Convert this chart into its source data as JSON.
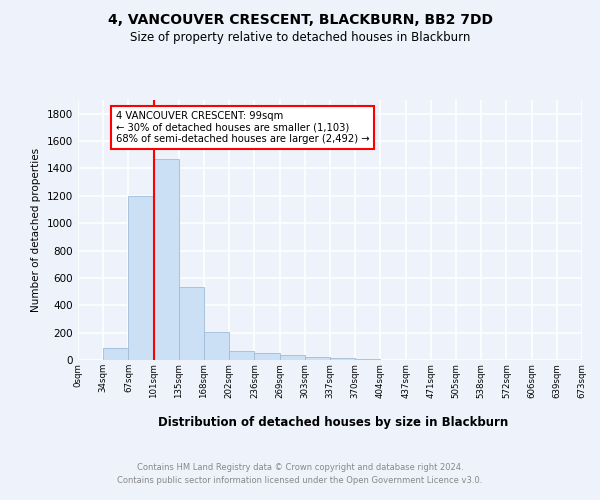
{
  "title": "4, VANCOUVER CRESCENT, BLACKBURN, BB2 7DD",
  "subtitle": "Size of property relative to detached houses in Blackburn",
  "xlabel": "Distribution of detached houses by size in Blackburn",
  "ylabel": "Number of detached properties",
  "bin_labels": [
    "0sqm",
    "34sqm",
    "67sqm",
    "101sqm",
    "135sqm",
    "168sqm",
    "202sqm",
    "236sqm",
    "269sqm",
    "303sqm",
    "337sqm",
    "370sqm",
    "404sqm",
    "437sqm",
    "471sqm",
    "505sqm",
    "538sqm",
    "572sqm",
    "606sqm",
    "639sqm",
    "673sqm"
  ],
  "bar_heights": [
    0,
    90,
    1200,
    1470,
    530,
    205,
    65,
    50,
    35,
    22,
    13,
    8,
    0,
    0,
    0,
    0,
    0,
    0,
    0,
    0
  ],
  "bar_color": "#cce0f5",
  "bar_edge_color": "#a0bcd8",
  "vline_color": "red",
  "vline_x": 3.0,
  "annotation_text": "4 VANCOUVER CRESCENT: 99sqm\n← 30% of detached houses are smaller (1,103)\n68% of semi-detached houses are larger (2,492) →",
  "annotation_box_color": "white",
  "annotation_box_edge_color": "red",
  "ylim": [
    0,
    1900
  ],
  "yticks": [
    0,
    200,
    400,
    600,
    800,
    1000,
    1200,
    1400,
    1600,
    1800
  ],
  "footer_line1": "Contains HM Land Registry data © Crown copyright and database right 2024.",
  "footer_line2": "Contains public sector information licensed under the Open Government Licence v3.0.",
  "bg_color": "#edf2fb",
  "grid_color": "white"
}
